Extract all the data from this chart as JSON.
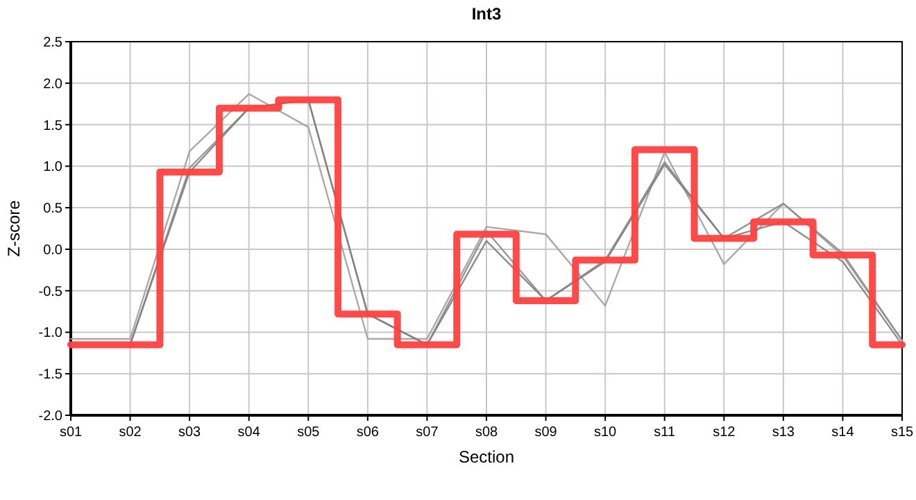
{
  "chart_data": {
    "type": "line",
    "title": "Int3",
    "xlabel": "Section",
    "ylabel": "Z-score",
    "categories": [
      "s01",
      "s02",
      "s03",
      "s04",
      "s05",
      "s06",
      "s07",
      "s08",
      "s09",
      "s10",
      "s11",
      "s12",
      "s13",
      "s14",
      "s15"
    ],
    "series": [
      {
        "color": "#a0a0a0",
        "values": [
          -1.08,
          -1.08,
          1.18,
          1.87,
          1.47,
          -1.08,
          -1.08,
          0.27,
          0.18,
          -0.68,
          1.17,
          -0.18,
          0.55,
          -0.08,
          -1.1
        ]
      },
      {
        "color": "#8c8c8c",
        "values": [
          null,
          -1.15,
          0.98,
          1.7,
          1.8,
          -0.78,
          -1.15,
          0.22,
          -0.62,
          -0.13,
          1.05,
          0.13,
          0.55,
          -0.05,
          -1.1
        ]
      },
      {
        "color": "#808080",
        "values": [
          null,
          -1.15,
          0.93,
          1.7,
          1.8,
          -0.78,
          -1.15,
          0.1,
          -0.62,
          -0.15,
          1.02,
          0.13,
          0.33,
          -0.15,
          -1.15
        ]
      },
      {
        "type": "step",
        "color": "#ff4040",
        "values": [
          -1.15,
          -1.15,
          0.93,
          1.7,
          1.8,
          -0.78,
          -1.15,
          0.18,
          -0.62,
          -0.13,
          1.2,
          0.13,
          0.33,
          -0.07,
          -1.15
        ]
      }
    ],
    "ylim": [
      -2,
      2.5
    ],
    "yticks": [
      {
        "value": -2,
        "label": "-2.0"
      },
      {
        "value": -1.5,
        "label": "-1.5"
      },
      {
        "value": -1,
        "label": "-1.0"
      },
      {
        "value": -0.5,
        "label": "-0.5"
      },
      {
        "value": 0,
        "label": "0.0"
      },
      {
        "value": 0.5,
        "label": "0.5"
      },
      {
        "value": 1,
        "label": "1.0"
      },
      {
        "value": 1.5,
        "label": "1.5"
      },
      {
        "value": 2,
        "label": "2.0"
      },
      {
        "value": 2.5,
        "label": "2.5"
      }
    ],
    "grid": true,
    "marker": "none"
  }
}
